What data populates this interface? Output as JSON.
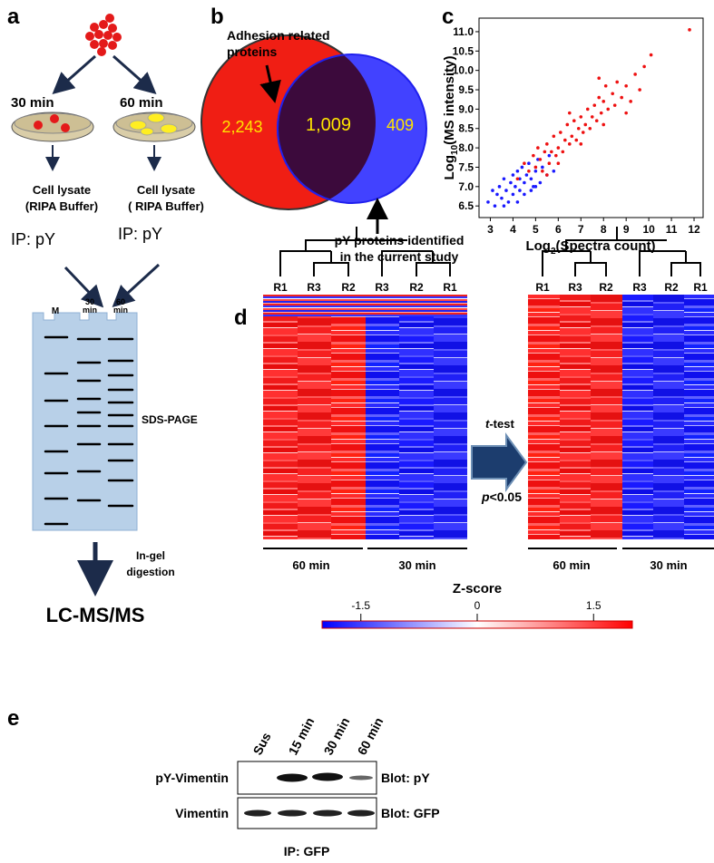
{
  "a": {
    "label": "a",
    "time_left": "30 min",
    "time_right": "60 min",
    "lysate_left": [
      "Cell lysate",
      "(RIPA Buffer)"
    ],
    "lysate_right": [
      "Cell lysate",
      "( RIPA Buffer)"
    ],
    "ip_left": "IP: pY",
    "ip_right": "IP: pY",
    "gel_lanes": [
      [
        "M"
      ],
      [
        "30",
        "min"
      ],
      [
        "60",
        "min"
      ]
    ],
    "gel": "SDS-PAGE",
    "digestion": [
      "In-gel",
      "digestion"
    ],
    "output": "LC-MS/MS"
  },
  "b": {
    "label": "b",
    "annotation_top": [
      "Adhesion related",
      "proteins"
    ],
    "annotation_bottom": [
      "pY proteins identified",
      "in the current study"
    ],
    "counts": [
      "2,243",
      "1,009",
      "409"
    ]
  },
  "chart_data": {
    "type": "scatter",
    "label": "c",
    "x_label": [
      "Log",
      "2",
      "(Spectra count)"
    ],
    "y_label": [
      "Log",
      "10",
      "(MS intensity)"
    ],
    "xlim": [
      2.5,
      12.4
    ],
    "ylim": [
      6.2,
      11.35
    ],
    "xticks": [
      3,
      4,
      5,
      6,
      7,
      8,
      9,
      10,
      11,
      12
    ],
    "yticks": [
      {
        "value": 6.5,
        "label": "6.5"
      },
      {
        "value": 7,
        "label": "7.0"
      },
      {
        "value": 7.5,
        "label": "7.5"
      },
      {
        "value": 8,
        "label": "8.0"
      },
      {
        "value": 8.5,
        "label": "8.5"
      },
      {
        "value": 9,
        "label": "9.0"
      },
      {
        "value": 9.5,
        "label": "9.5"
      },
      {
        "value": 10,
        "label": "10.0"
      },
      {
        "value": 10.5,
        "label": "10.5"
      },
      {
        "value": 11,
        "label": "11.0"
      }
    ],
    "series": [
      {
        "color": "#1a1aff",
        "x": [
          2.9,
          3.1,
          3.2,
          3.4,
          3.5,
          3.6,
          3.7,
          3.8,
          3.9,
          4.0,
          4.0,
          4.1,
          4.2,
          4.3,
          4.3,
          4.4,
          4.5,
          4.5,
          4.6,
          4.7,
          4.8,
          4.9,
          5.0,
          5.1,
          5.2,
          5.3,
          5.5,
          5.6,
          5.8,
          3.3,
          4.2,
          4.8,
          3.6,
          5.0
        ],
        "y": [
          6.6,
          6.9,
          6.5,
          7.0,
          6.7,
          7.2,
          6.9,
          6.6,
          7.1,
          7.3,
          6.8,
          7.0,
          7.4,
          6.9,
          7.2,
          7.5,
          7.1,
          6.8,
          7.3,
          7.6,
          7.2,
          7.0,
          7.4,
          7.7,
          7.1,
          7.5,
          7.3,
          7.8,
          7.4,
          6.8,
          6.6,
          6.9,
          6.5,
          7.0
        ]
      },
      {
        "color": "#ee1111",
        "x": [
          4.2,
          4.5,
          4.7,
          4.9,
          5.0,
          5.1,
          5.2,
          5.3,
          5.4,
          5.5,
          5.6,
          5.7,
          5.8,
          5.9,
          6.0,
          6.1,
          6.2,
          6.3,
          6.4,
          6.5,
          6.6,
          6.7,
          6.8,
          6.9,
          7.0,
          7.1,
          7.2,
          7.3,
          7.4,
          7.5,
          7.6,
          7.7,
          7.8,
          7.9,
          8.0,
          8.1,
          8.2,
          8.4,
          8.5,
          8.6,
          8.8,
          9.0,
          9.2,
          9.4,
          9.6,
          9.8,
          10.1,
          6.0,
          5.5,
          7.0,
          8.0,
          6.5,
          7.8,
          9.0,
          11.8
        ],
        "y": [
          7.2,
          7.6,
          7.4,
          7.8,
          7.5,
          8.0,
          7.7,
          7.4,
          7.9,
          8.1,
          7.6,
          7.9,
          8.3,
          7.8,
          8.0,
          8.4,
          7.9,
          8.2,
          8.6,
          8.1,
          8.3,
          8.7,
          8.2,
          8.5,
          8.8,
          8.4,
          8.6,
          9.0,
          8.5,
          8.8,
          9.1,
          8.7,
          9.3,
          8.9,
          9.2,
          9.6,
          9.0,
          9.4,
          9.1,
          9.7,
          9.3,
          9.6,
          9.2,
          9.9,
          9.5,
          10.1,
          10.4,
          7.6,
          7.3,
          8.1,
          8.6,
          8.9,
          9.8,
          8.9,
          11.05
        ]
      }
    ]
  },
  "d": {
    "label": "d",
    "heatmaps": [
      {
        "columns": [
          "R1",
          "R3",
          "R2",
          "R3",
          "R2",
          "R1"
        ],
        "groups": [
          "60 min",
          "30 min"
        ]
      },
      {
        "columns": [
          "R1",
          "R3",
          "R2",
          "R3",
          "R2",
          "R1"
        ],
        "groups": [
          "60 min",
          "30 min"
        ]
      }
    ],
    "test": [
      "t",
      "-test"
    ],
    "threshold": [
      "p",
      "<0.05"
    ],
    "colorbar": {
      "title": "Z-score",
      "lim": [
        -2,
        2
      ],
      "ticks": [
        -1.5,
        0,
        1.5
      ]
    }
  },
  "e": {
    "label": "e",
    "lanes": [
      "Sus",
      "15 min",
      "30 min",
      "60 min"
    ],
    "rows": [
      {
        "name": "pY-Vimentin",
        "blot": "Blot: pY"
      },
      {
        "name": "Vimentin",
        "blot": "Blot: GFP"
      }
    ],
    "ip": "IP: GFP"
  }
}
